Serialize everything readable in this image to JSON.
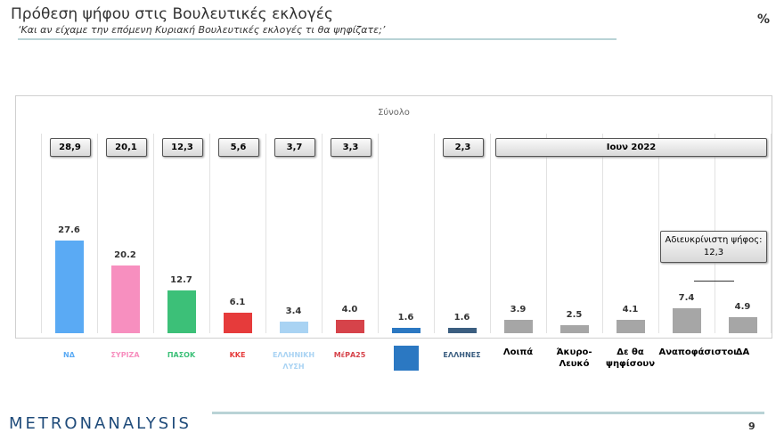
{
  "header": {
    "title": "Πρόθεση ψήφου στις Βουλευτικές εκλογές",
    "subtitle": "‘Και αν είχαμε την επόμενη Κυριακή Βουλευτικές εκλογές τι θα ψηφίζατε;’",
    "unit": "%"
  },
  "chart_data": {
    "type": "bar",
    "title": "Σύνολο",
    "categories": [
      "ΝΔ",
      "ΣΥΡΙΖΑ",
      "ΠΑΣΟΚ",
      "ΚΚΕ",
      "ΕΛΛΗΝΙΚΗ ΛΥΣΗ",
      "ΜέΡΑ25",
      null,
      "ΕΛΛΗΝΕΣ",
      "Λοιπά",
      "Άκυρο-Λευκό",
      "Δε θα ψηφίσουν",
      "Αναποφάσιστοι",
      "ΔΑ"
    ],
    "values": [
      27.6,
      20.2,
      12.7,
      6.1,
      3.4,
      4.0,
      1.6,
      1.6,
      3.9,
      2.5,
      4.1,
      7.4,
      4.9
    ],
    "value_labels": [
      "27.6",
      "20.2",
      "12.7",
      "6.1",
      "3.4",
      "4.0",
      "1.6",
      "1.6",
      "3.9",
      "2.5",
      "4.1",
      "7.4",
      "4.9"
    ],
    "colors": [
      "#5aaaf4",
      "#f78fbf",
      "#3cc078",
      "#e63b3b",
      "#a9d3f3",
      "#d6434a",
      "#2b78c2",
      "#3b5e80",
      "#a6a6a6",
      "#a6a6a6",
      "#a6a6a6",
      "#a6a6a6",
      "#a6a6a6"
    ],
    "comparison": {
      "name": "Ιουν 2022",
      "values": [
        28.9,
        20.1,
        12.3,
        5.6,
        3.7,
        3.3,
        null,
        2.3
      ],
      "value_labels": [
        "28,9",
        "20,1",
        "12,3",
        "5,6",
        "3,7",
        "3,3",
        null,
        "2,3"
      ]
    },
    "annotation": "Αδιευκρίνιστη ψήφος: 12,3"
  },
  "footer": {
    "brand": "METRONANALYSIS",
    "page": "9"
  }
}
